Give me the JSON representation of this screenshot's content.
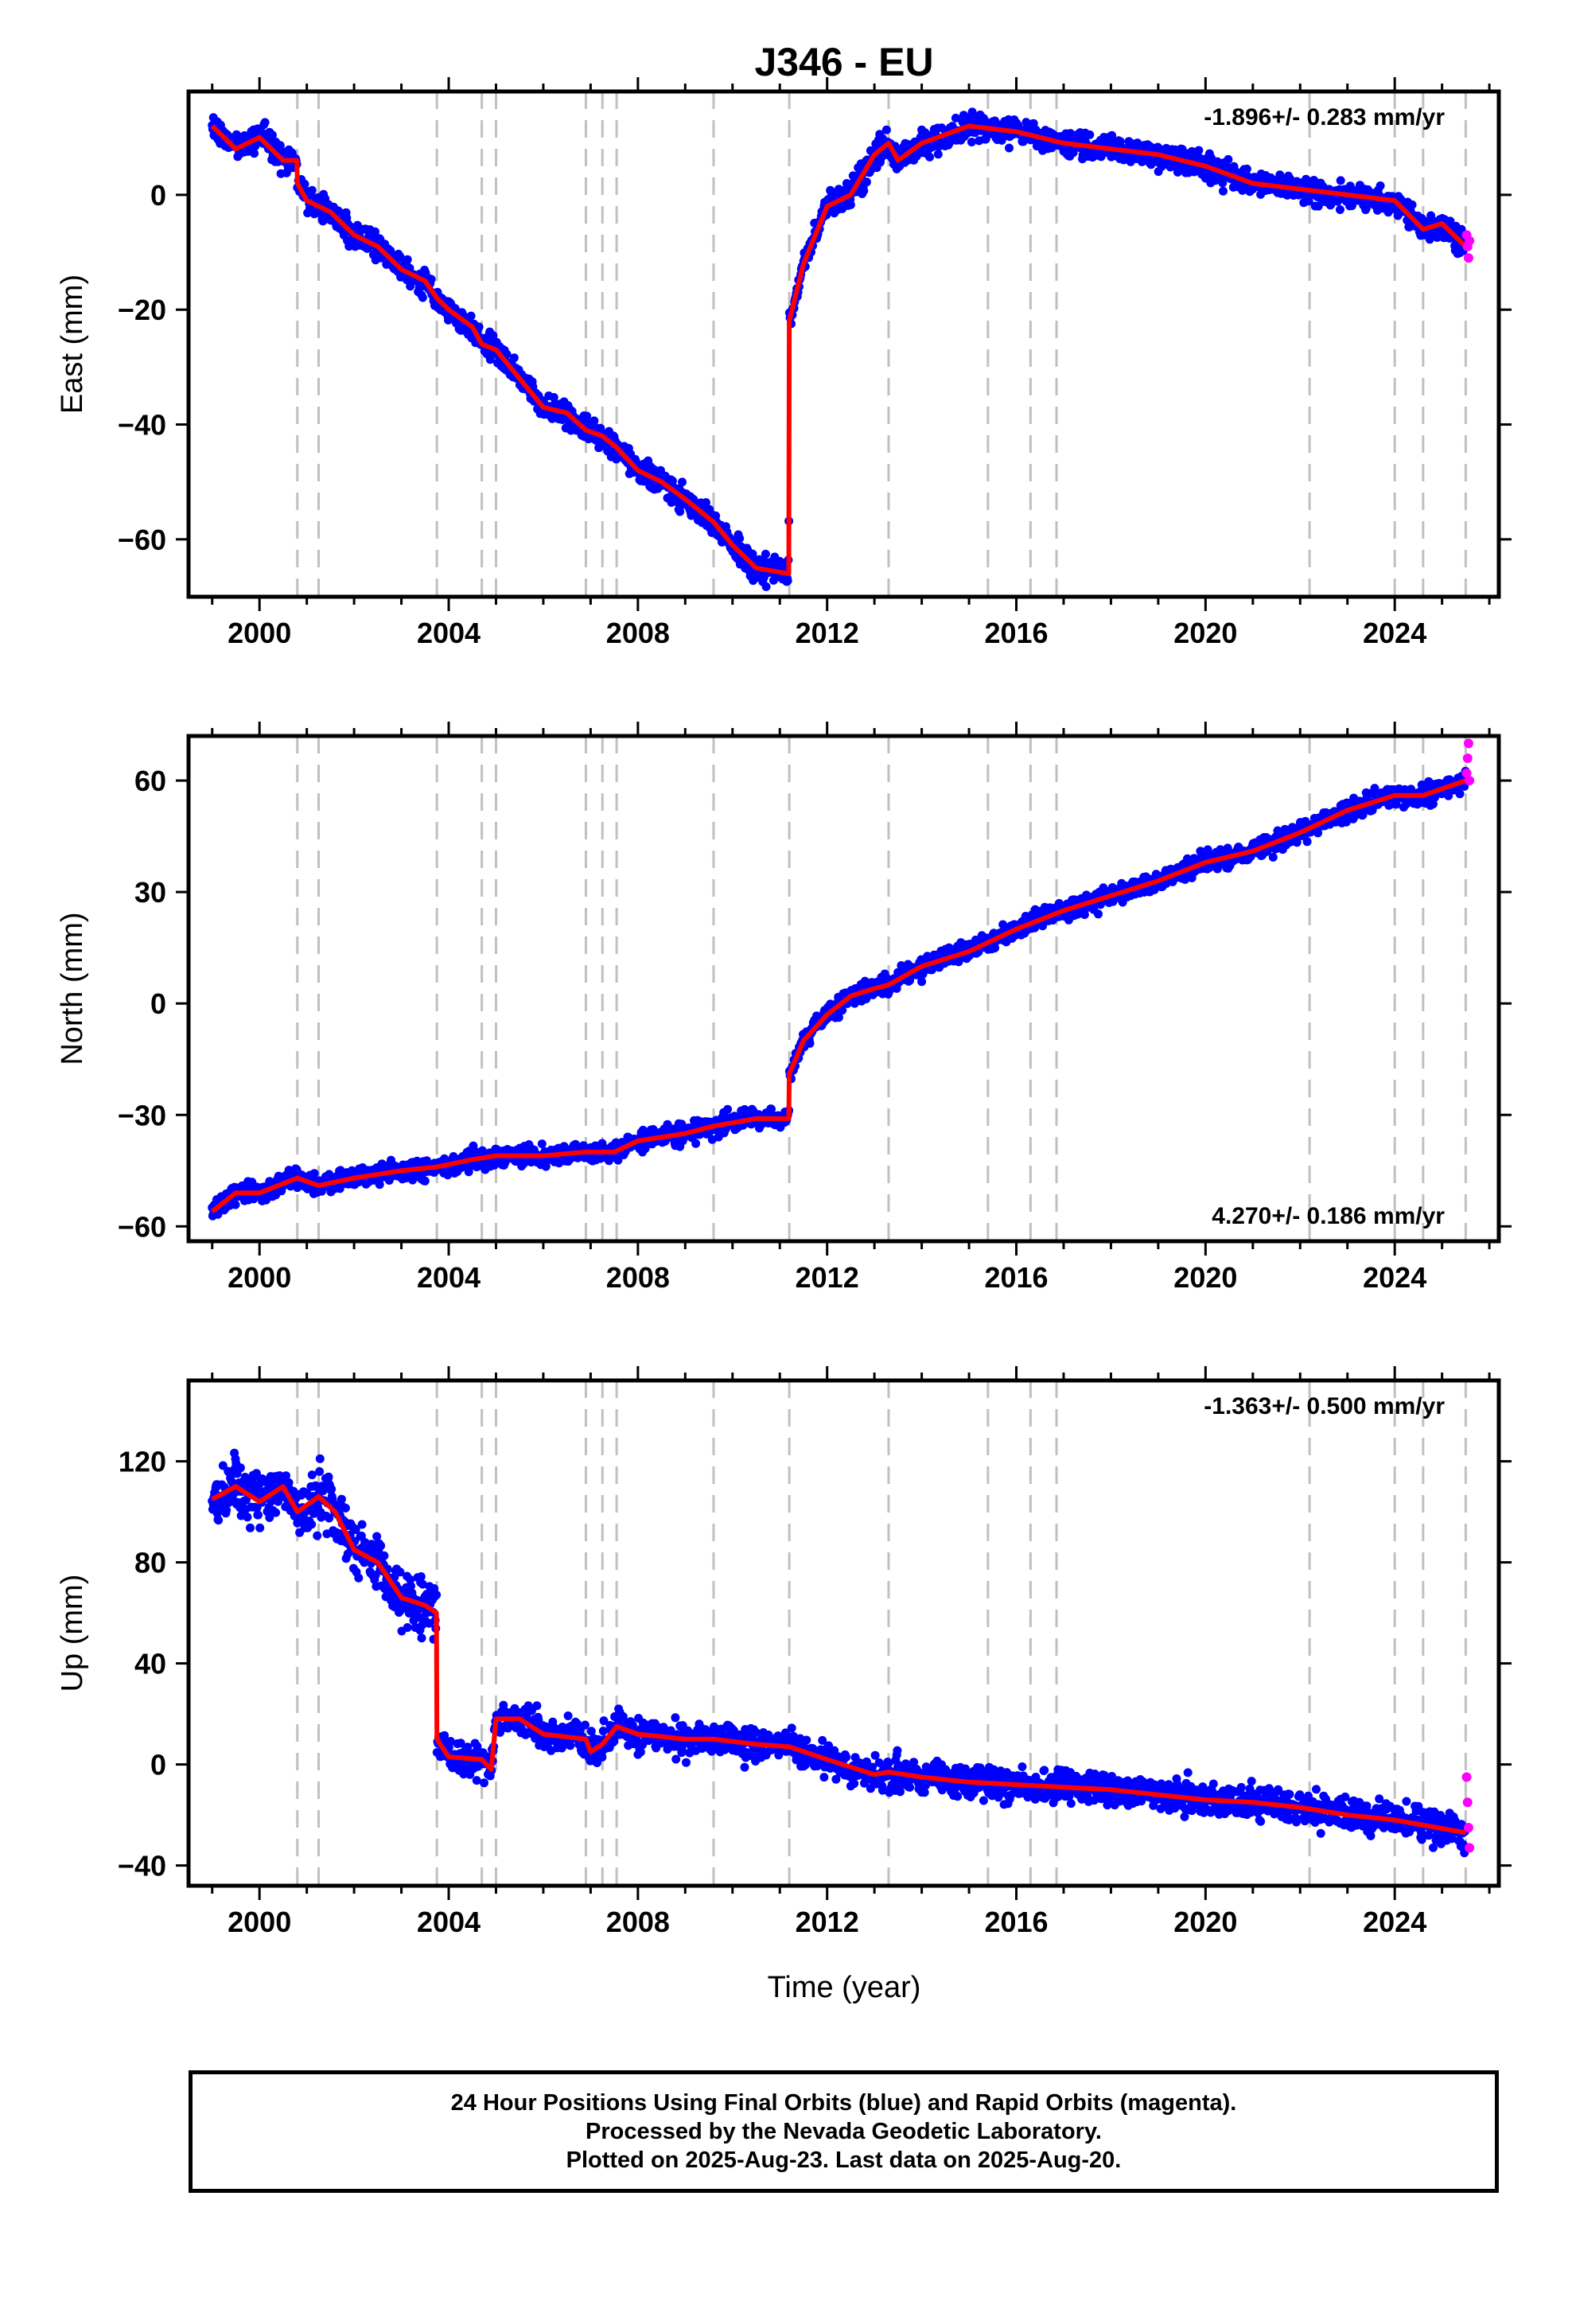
{
  "title": "J346 - EU",
  "xlabel": "Time (year)",
  "colors": {
    "final_orbits": "#0000ff",
    "rapid_orbits": "#ff00ff",
    "model": "#ff0000",
    "event_lines": "#c0c0c0"
  },
  "footer": {
    "line1": "24 Hour Positions Using Final Orbits (blue) and Rapid Orbits (magenta).",
    "line2": "Processed by the Nevada Geodetic Laboratory.",
    "line3": "Plotted on 2025-Aug-23. Last data on 2025-Aug-20."
  },
  "chart_data": [
    {
      "type": "scatter",
      "component": "east",
      "ylabel": "East (mm)",
      "rate_label": "-1.896+/- 0.283 mm/yr",
      "rate_position": "top-right",
      "xlim": [
        1998.5,
        2026.2
      ],
      "ylim": [
        -70,
        18
      ],
      "xticks": [
        2000,
        2004,
        2008,
        2012,
        2016,
        2020,
        2024
      ],
      "yticks": [
        -60,
        -40,
        -20,
        0
      ],
      "event_lines": [
        2000.8,
        2001.25,
        2003.75,
        2004.7,
        2005.0,
        2006.9,
        2007.25,
        2007.55,
        2009.6,
        2011.2,
        2013.3,
        2015.4,
        2016.3,
        2016.85,
        2022.2,
        2024.0,
        2024.6,
        2025.5
      ],
      "model": [
        [
          1999.0,
          12
        ],
        [
          1999.5,
          8
        ],
        [
          2000.0,
          10
        ],
        [
          2000.5,
          6
        ],
        [
          2000.79,
          6
        ],
        [
          2000.8,
          2
        ],
        [
          2001.0,
          -1
        ],
        [
          2001.5,
          -3
        ],
        [
          2002.0,
          -7
        ],
        [
          2002.5,
          -9
        ],
        [
          2003.0,
          -13
        ],
        [
          2003.5,
          -15
        ],
        [
          2003.75,
          -18
        ],
        [
          2004.0,
          -20
        ],
        [
          2004.5,
          -23
        ],
        [
          2004.7,
          -26
        ],
        [
          2005.0,
          -27
        ],
        [
          2005.5,
          -32
        ],
        [
          2006.0,
          -37
        ],
        [
          2006.5,
          -38
        ],
        [
          2006.9,
          -41
        ],
        [
          2007.25,
          -42
        ],
        [
          2007.55,
          -44
        ],
        [
          2008.0,
          -48
        ],
        [
          2008.5,
          -50
        ],
        [
          2009.0,
          -53
        ],
        [
          2009.6,
          -57
        ],
        [
          2010.0,
          -61
        ],
        [
          2010.5,
          -65
        ],
        [
          2011.19,
          -66
        ],
        [
          2011.2,
          -22
        ],
        [
          2011.5,
          -12
        ],
        [
          2012.0,
          -2
        ],
        [
          2012.5,
          0
        ],
        [
          2013.0,
          7
        ],
        [
          2013.3,
          9
        ],
        [
          2013.5,
          6
        ],
        [
          2014.0,
          9
        ],
        [
          2015.0,
          12
        ],
        [
          2016.0,
          11
        ],
        [
          2017.0,
          9
        ],
        [
          2018.0,
          8
        ],
        [
          2019.0,
          7
        ],
        [
          2020.0,
          5
        ],
        [
          2021.0,
          2
        ],
        [
          2022.0,
          1
        ],
        [
          2023.0,
          0
        ],
        [
          2024.0,
          -1
        ],
        [
          2024.6,
          -6
        ],
        [
          2025.0,
          -5
        ],
        [
          2025.5,
          -9
        ]
      ],
      "rapid_points": [
        [
          2025.52,
          -7
        ],
        [
          2025.54,
          -9
        ],
        [
          2025.56,
          -11
        ],
        [
          2025.58,
          -8
        ]
      ]
    },
    {
      "type": "scatter",
      "component": "north",
      "ylabel": "North (mm)",
      "rate_label": "4.270+/- 0.186 mm/yr",
      "rate_position": "bottom-right",
      "xlim": [
        1998.5,
        2026.2
      ],
      "ylim": [
        -64,
        72
      ],
      "xticks": [
        2000,
        2004,
        2008,
        2012,
        2016,
        2020,
        2024
      ],
      "yticks": [
        -60,
        -30,
        0,
        30,
        60
      ],
      "event_lines": [
        2000.8,
        2001.25,
        2003.75,
        2004.7,
        2005.0,
        2006.9,
        2007.25,
        2007.55,
        2009.6,
        2011.2,
        2013.3,
        2015.4,
        2016.3,
        2016.85,
        2022.2,
        2024.0,
        2024.6,
        2025.5
      ],
      "model": [
        [
          1999.0,
          -56
        ],
        [
          1999.5,
          -51
        ],
        [
          2000.0,
          -51
        ],
        [
          2000.8,
          -47
        ],
        [
          2001.25,
          -49
        ],
        [
          2002.0,
          -47
        ],
        [
          2003.0,
          -45
        ],
        [
          2003.75,
          -44
        ],
        [
          2004.5,
          -42
        ],
        [
          2005.0,
          -41
        ],
        [
          2006.0,
          -41
        ],
        [
          2006.9,
          -40
        ],
        [
          2007.5,
          -40
        ],
        [
          2008.0,
          -37
        ],
        [
          2009.0,
          -35
        ],
        [
          2009.6,
          -33
        ],
        [
          2010.5,
          -31
        ],
        [
          2011.19,
          -31
        ],
        [
          2011.2,
          -19
        ],
        [
          2011.5,
          -10
        ],
        [
          2012.0,
          -3
        ],
        [
          2012.5,
          2
        ],
        [
          2013.0,
          4
        ],
        [
          2013.3,
          5
        ],
        [
          2014.0,
          10
        ],
        [
          2015.0,
          14
        ],
        [
          2016.0,
          20
        ],
        [
          2017.0,
          25
        ],
        [
          2018.0,
          29
        ],
        [
          2019.0,
          33
        ],
        [
          2020.0,
          38
        ],
        [
          2021.0,
          41
        ],
        [
          2022.0,
          46
        ],
        [
          2023.0,
          52
        ],
        [
          2024.0,
          56
        ],
        [
          2024.6,
          56
        ],
        [
          2025.5,
          60
        ]
      ],
      "rapid_points": [
        [
          2025.52,
          62
        ],
        [
          2025.54,
          66
        ],
        [
          2025.56,
          70
        ],
        [
          2025.58,
          60
        ]
      ]
    },
    {
      "type": "scatter",
      "component": "up",
      "ylabel": "Up (mm)",
      "rate_label": "-1.363+/- 0.500 mm/yr",
      "rate_position": "top-right",
      "xlim": [
        1998.5,
        2026.2
      ],
      "ylim": [
        -48,
        152
      ],
      "xticks": [
        2000,
        2004,
        2008,
        2012,
        2016,
        2020,
        2024
      ],
      "yticks": [
        -40,
        0,
        40,
        80,
        120
      ],
      "event_lines": [
        2000.8,
        2001.25,
        2003.75,
        2004.7,
        2005.0,
        2006.9,
        2007.25,
        2007.55,
        2009.6,
        2011.2,
        2013.3,
        2015.4,
        2016.3,
        2016.85,
        2022.2,
        2024.0,
        2024.6,
        2025.5
      ],
      "model": [
        [
          1999.0,
          105
        ],
        [
          1999.5,
          110
        ],
        [
          2000.0,
          104
        ],
        [
          2000.5,
          110
        ],
        [
          2000.8,
          100
        ],
        [
          2001.25,
          106
        ],
        [
          2001.6,
          100
        ],
        [
          2002.0,
          85
        ],
        [
          2002.5,
          80
        ],
        [
          2003.0,
          66
        ],
        [
          2003.5,
          63
        ],
        [
          2003.74,
          60
        ],
        [
          2003.75,
          10
        ],
        [
          2004.0,
          3
        ],
        [
          2004.7,
          2
        ],
        [
          2004.9,
          -2
        ],
        [
          2005.0,
          18
        ],
        [
          2005.5,
          18
        ],
        [
          2006.0,
          12
        ],
        [
          2006.9,
          10
        ],
        [
          2007.0,
          5
        ],
        [
          2007.25,
          8
        ],
        [
          2007.55,
          15
        ],
        [
          2008.0,
          12
        ],
        [
          2009.0,
          10
        ],
        [
          2009.6,
          10
        ],
        [
          2010.5,
          8
        ],
        [
          2011.2,
          7
        ],
        [
          2012.0,
          2
        ],
        [
          2013.0,
          -4
        ],
        [
          2013.3,
          -3
        ],
        [
          2014.0,
          -5
        ],
        [
          2015.0,
          -7
        ],
        [
          2016.0,
          -8
        ],
        [
          2017.0,
          -9
        ],
        [
          2018.0,
          -10
        ],
        [
          2019.0,
          -12
        ],
        [
          2020.0,
          -14
        ],
        [
          2021.0,
          -15
        ],
        [
          2022.0,
          -17
        ],
        [
          2023.0,
          -20
        ],
        [
          2024.0,
          -22
        ],
        [
          2024.6,
          -24
        ],
        [
          2025.5,
          -27
        ]
      ],
      "rapid_points": [
        [
          2025.52,
          -5
        ],
        [
          2025.54,
          -15
        ],
        [
          2025.56,
          -25
        ],
        [
          2025.58,
          -33
        ]
      ]
    }
  ]
}
